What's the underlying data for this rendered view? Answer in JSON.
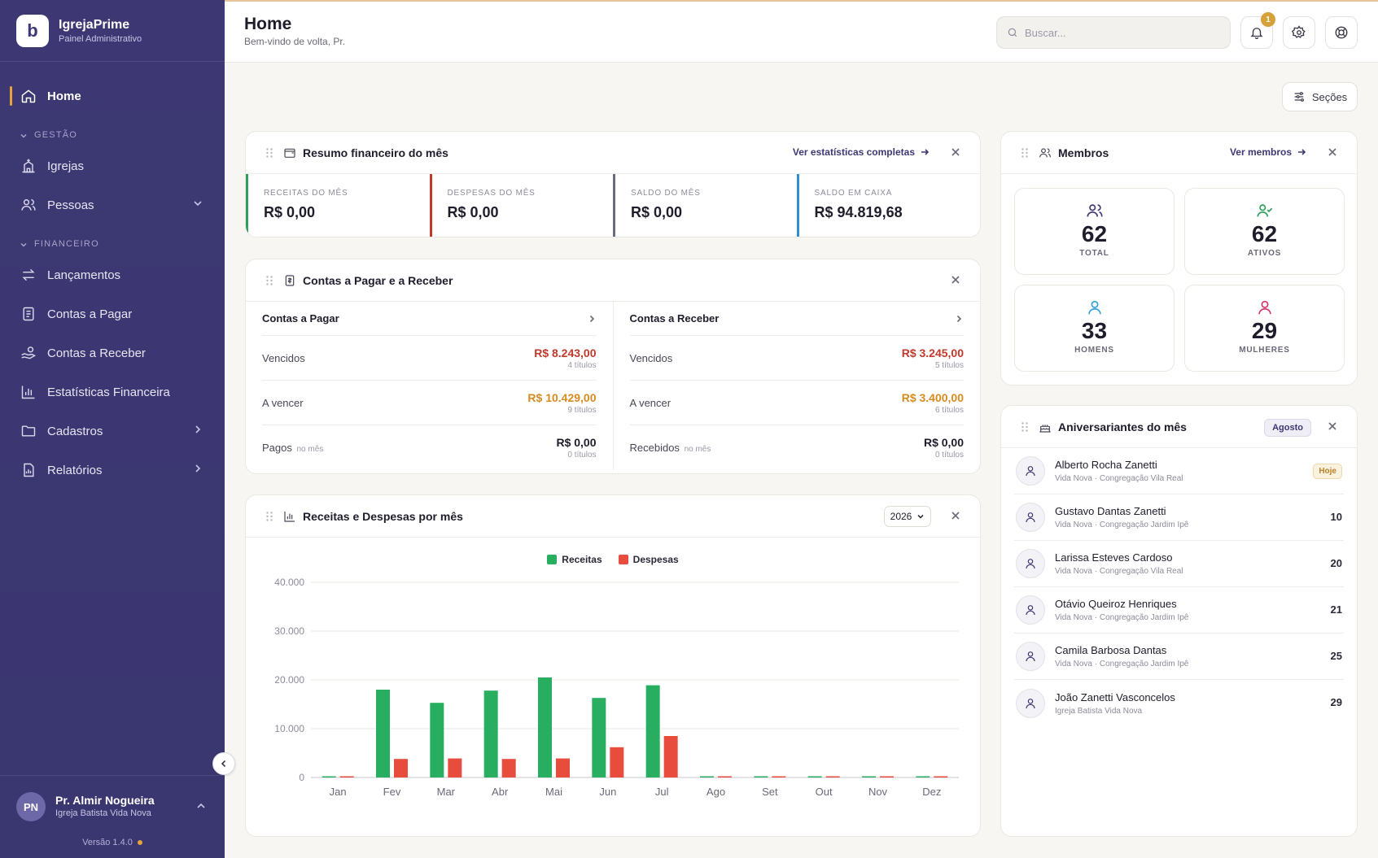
{
  "brand": {
    "name": "IgrejaPrime",
    "subtitle": "Painel Administrativo",
    "logo_letter": "b"
  },
  "nav": {
    "home": "Home",
    "section_gestao": "GESTÃO",
    "igrejas": "Igrejas",
    "pessoas": "Pessoas",
    "section_financeiro": "FINANCEIRO",
    "lancamentos": "Lançamentos",
    "contas_pagar": "Contas a Pagar",
    "contas_receber": "Contas a Receber",
    "estatisticas": "Estatísticas Financeira",
    "cadastros": "Cadastros",
    "relatorios": "Relatórios"
  },
  "user": {
    "initials": "PN",
    "name": "Pr. Almir Nogueira",
    "church": "Igreja Batista Vida Nova",
    "version": "Versão 1.4.0"
  },
  "header": {
    "title": "Home",
    "subtitle": "Bem-vindo de volta, Pr.",
    "search_placeholder": "Buscar...",
    "notifications_count": "1",
    "sections_label": "Seções"
  },
  "finance_summary": {
    "title": "Resumo financeiro do mês",
    "link": "Ver estatísticas completas",
    "items": [
      {
        "label": "RECEITAS DO MÊS",
        "value": "R$ 0,00",
        "color": "#2e9e5b"
      },
      {
        "label": "DESPESAS DO MÊS",
        "value": "R$ 0,00",
        "color": "#c0392b"
      },
      {
        "label": "SALDO DO MÊS",
        "value": "R$ 0,00",
        "color": "#6b6a86"
      },
      {
        "label": "SALDO EM CAIXA",
        "value": "R$ 94.819,68",
        "color": "#2f8fd0"
      }
    ]
  },
  "accounts": {
    "title": "Contas a Pagar e a Receber",
    "payable": {
      "title": "Contas a Pagar",
      "rows": [
        {
          "label": "Vencidos",
          "note": "",
          "value": "R$ 8.243,00",
          "count": "4 títulos",
          "color": "#c0392b"
        },
        {
          "label": "A vencer",
          "note": "",
          "value": "R$ 10.429,00",
          "count": "9 títulos",
          "color": "#d68b1f"
        },
        {
          "label": "Pagos",
          "note": "no mês",
          "value": "R$ 0,00",
          "count": "0 títulos",
          "color": "#1f1d2b"
        }
      ]
    },
    "receivable": {
      "title": "Contas a Receber",
      "rows": [
        {
          "label": "Vencidos",
          "note": "",
          "value": "R$ 3.245,00",
          "count": "5 títulos",
          "color": "#c0392b"
        },
        {
          "label": "A vencer",
          "note": "",
          "value": "R$ 3.400,00",
          "count": "6 títulos",
          "color": "#d68b1f"
        },
        {
          "label": "Recebidos",
          "note": "no mês",
          "value": "R$ 0,00",
          "count": "0 títulos",
          "color": "#1f1d2b"
        }
      ]
    }
  },
  "chart_card": {
    "title": "Receitas e Despesas por mês",
    "year": "2026"
  },
  "chart_data": {
    "type": "bar",
    "categories": [
      "Jan",
      "Fev",
      "Mar",
      "Abr",
      "Mai",
      "Jun",
      "Jul",
      "Ago",
      "Set",
      "Out",
      "Nov",
      "Dez"
    ],
    "series": [
      {
        "name": "Receitas",
        "color": "#27ae60",
        "values": [
          0,
          18000,
          15300,
          17800,
          20500,
          16300,
          18900,
          0,
          0,
          0,
          0,
          0
        ]
      },
      {
        "name": "Despesas",
        "color": "#e74c3c",
        "values": [
          0,
          3800,
          3900,
          3800,
          3900,
          6200,
          8500,
          0,
          0,
          0,
          0,
          0
        ]
      }
    ],
    "y_ticks": [
      "0",
      "10.000",
      "20.000",
      "30.000",
      "40.000"
    ],
    "ylim": [
      0,
      40000
    ],
    "grid": true,
    "legend": "top-center"
  },
  "members": {
    "title": "Membros",
    "link": "Ver membros",
    "stats": [
      {
        "value": "62",
        "label": "TOTAL",
        "color": "#3d3873",
        "icon": "users-icon"
      },
      {
        "value": "62",
        "label": "ATIVOS",
        "color": "#2e9e5b",
        "icon": "user-check-icon"
      },
      {
        "value": "33",
        "label": "HOMENS",
        "color": "#2f9fd6",
        "icon": "user-icon"
      },
      {
        "value": "29",
        "label": "MULHERES",
        "color": "#d6336c",
        "icon": "user-icon"
      }
    ]
  },
  "birthdays": {
    "title": "Aniversariantes do mês",
    "month": "Agosto",
    "items": [
      {
        "name": "Alberto Rocha Zanetti",
        "sub": "Vida Nova · Congregação Vila Real",
        "day": "Hoje"
      },
      {
        "name": "Gustavo Dantas Zanetti",
        "sub": "Vida Nova · Congregação Jardim Ipê",
        "day": "10"
      },
      {
        "name": "Larissa Esteves Cardoso",
        "sub": "Vida Nova · Congregação Vila Real",
        "day": "20"
      },
      {
        "name": "Otávio Queiroz Henriques",
        "sub": "Vida Nova · Congregação Jardim Ipê",
        "day": "21"
      },
      {
        "name": "Camila Barbosa Dantas",
        "sub": "Vida Nova · Congregação Jardim Ipê",
        "day": "25"
      },
      {
        "name": "João Zanetti Vasconcelos",
        "sub": "Igreja Batista Vida Nova",
        "day": "29"
      }
    ]
  }
}
